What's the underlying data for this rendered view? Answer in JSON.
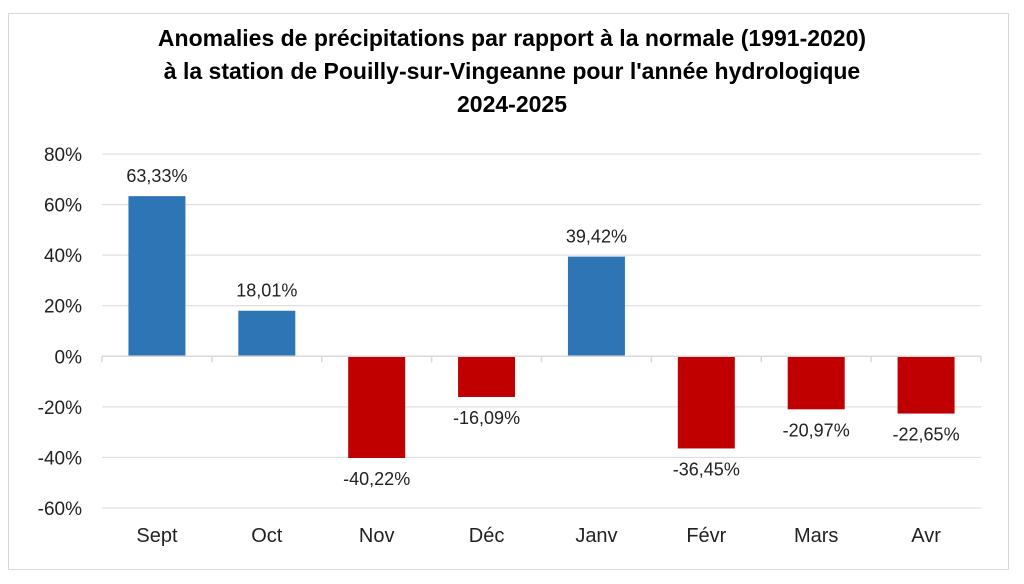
{
  "chart_data": {
    "type": "bar",
    "title": "Anomalies de précipitations par rapport à la normale (1991-2020) à la station de Pouilly-sur-Vingeanne pour l'année hydrologique 2024-2025",
    "xlabel": "",
    "ylabel": "",
    "categories": [
      "Sept",
      "Oct",
      "Nov",
      "Déc",
      "Janv",
      "Févr",
      "Mars",
      "Avr"
    ],
    "values": [
      63.33,
      18.01,
      -40.22,
      -16.09,
      39.42,
      -36.45,
      -20.97,
      -22.65
    ],
    "data_labels": [
      "63,33%",
      "18,01%",
      "-40,22%",
      "-16,09%",
      "39,42%",
      "-36,45%",
      "-20,97%",
      "-22,65%"
    ],
    "ylim": [
      -60,
      80
    ],
    "yticks": [
      80,
      60,
      40,
      20,
      0,
      -20,
      -40,
      -60
    ],
    "ytick_labels": [
      "80%",
      "60%",
      "40%",
      "20%",
      "0%",
      "-20%",
      "-40%",
      "-60%"
    ],
    "grid": true,
    "legend": "none",
    "colors": {
      "positive": "#2e75b6",
      "negative": "#c00000",
      "grid": "#d9d9d9"
    }
  }
}
